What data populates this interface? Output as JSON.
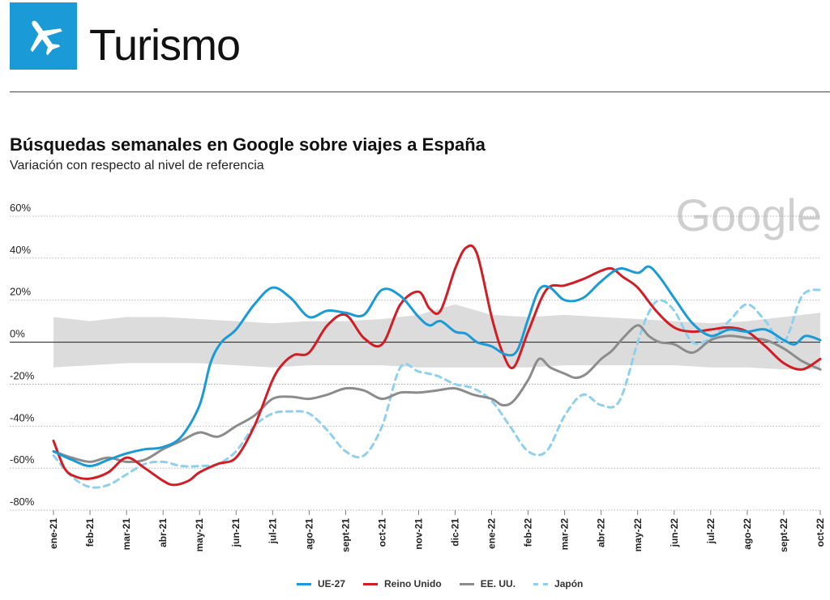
{
  "header": {
    "section_title": "Turismo",
    "icon": "airplane-icon",
    "accent_color": "#1a9ad6"
  },
  "watermark": "Google",
  "chart_data": {
    "type": "line",
    "title": "Búsquedas semanales en Google sobre viajes a España",
    "subtitle": "Variación con respecto al nivel de referencia",
    "y_unit": "%",
    "ylim": [
      -80,
      60
    ],
    "yticks": [
      60,
      40,
      20,
      0,
      -20,
      -40,
      -60,
      -80
    ],
    "ytick_labels": [
      "60%",
      "40%",
      "20%",
      "0%",
      "-20%",
      "-40%",
      "-60%",
      "-80%"
    ],
    "categories": [
      "ene-21",
      "feb-21",
      "mar-21",
      "abr-21",
      "may-21",
      "jun-21",
      "jul-21",
      "ago-21",
      "sept-21",
      "oct-21",
      "nov-21",
      "dic-21",
      "ene-22",
      "feb-22",
      "mar-22",
      "abr-22",
      "may-22",
      "jun-22",
      "jul-22",
      "ago-22",
      "sept-22",
      "oct-22"
    ],
    "x_range": [
      0,
      21
    ],
    "grid": "horizontal dotted",
    "legend_position": "bottom-center",
    "reference_band": {
      "x": [
        0,
        1,
        2,
        3,
        4,
        5,
        6,
        7,
        8,
        9,
        10,
        11,
        12,
        13,
        14,
        15,
        16,
        17,
        18,
        19,
        20,
        21
      ],
      "upper": [
        12,
        10,
        12,
        12,
        11,
        10,
        9,
        10,
        10,
        11,
        13,
        18,
        13,
        12,
        13,
        12,
        11,
        10,
        9,
        10,
        12,
        14
      ],
      "lower": [
        -12,
        -11,
        -10,
        -10,
        -10,
        -11,
        -12,
        -11,
        -11,
        -11,
        -12,
        -12,
        -12,
        -12,
        -11,
        -11,
        -11,
        -11,
        -12,
        -12,
        -13,
        -13
      ],
      "color": "#dcdcdc"
    },
    "series": [
      {
        "name": "UE-27",
        "color": "#1a9ad6",
        "dashed": false,
        "x": [
          0,
          0.5,
          1,
          1.5,
          2,
          2.5,
          3,
          3.5,
          4,
          4.3,
          4.6,
          5,
          5.5,
          6,
          6.5,
          7,
          7.5,
          8,
          8.5,
          9,
          9.5,
          10,
          10.3,
          10.6,
          11,
          11.3,
          11.6,
          12,
          12.4,
          12.7,
          13,
          13.3,
          13.6,
          14,
          14.5,
          15,
          15.5,
          16,
          16.3,
          16.6,
          17,
          17.5,
          18,
          18.5,
          19,
          19.5,
          20,
          20.3,
          20.6,
          21
        ],
        "y": [
          -52,
          -56,
          -59,
          -56,
          -53,
          -51,
          -50,
          -45,
          -30,
          -10,
          0,
          6,
          18,
          26,
          21,
          12,
          15,
          14,
          13,
          25,
          22,
          12,
          8,
          10,
          5,
          4,
          0,
          -2,
          -6,
          -4,
          11,
          25,
          26,
          20,
          21,
          29,
          35,
          33,
          36,
          31,
          21,
          9,
          3,
          6,
          5,
          6,
          1,
          -1,
          3,
          1
        ]
      },
      {
        "name": "Reino Unido",
        "color": "#d21d24",
        "dashed": false,
        "x": [
          0,
          0.3,
          0.6,
          1,
          1.5,
          2,
          2.5,
          3,
          3.3,
          3.7,
          4,
          4.5,
          5,
          5.5,
          6,
          6.3,
          6.6,
          7,
          7.5,
          8,
          8.5,
          9,
          9.5,
          10,
          10.3,
          10.6,
          11,
          11.3,
          11.6,
          12,
          12.3,
          12.6,
          13,
          13.5,
          14,
          14.5,
          15,
          15.3,
          15.6,
          16,
          16.5,
          17,
          17.5,
          18,
          18.5,
          19,
          19.5,
          20,
          20.5,
          21
        ],
        "y": [
          -47,
          -60,
          -64,
          -65,
          -62,
          -55,
          -60,
          -66,
          -68,
          -66,
          -62,
          -58,
          -55,
          -40,
          -18,
          -10,
          -6,
          -5,
          8,
          13,
          2,
          -1,
          18,
          24,
          16,
          15,
          35,
          45,
          42,
          12,
          -5,
          -12,
          5,
          25,
          27,
          30,
          34,
          35,
          31,
          26,
          15,
          7,
          5,
          6,
          7,
          5,
          -2,
          -10,
          -13,
          -8
        ]
      },
      {
        "name": "EE. UU.",
        "color": "#8c8c8c",
        "dashed": false,
        "x": [
          0,
          0.5,
          1,
          1.5,
          2,
          2.5,
          3,
          3.5,
          4,
          4.5,
          5,
          5.5,
          6,
          6.5,
          7,
          7.5,
          8,
          8.5,
          9,
          9.5,
          10,
          10.5,
          11,
          11.5,
          12,
          12.3,
          12.6,
          13,
          13.3,
          13.6,
          14,
          14.3,
          14.6,
          15,
          15.3,
          15.6,
          16,
          16.3,
          16.6,
          17,
          17.5,
          18,
          18.5,
          19,
          19.5,
          20,
          20.5,
          21
        ],
        "y": [
          -52,
          -55,
          -57,
          -55,
          -57,
          -56,
          -51,
          -47,
          -43,
          -45,
          -40,
          -35,
          -27,
          -26,
          -27,
          -25,
          -22,
          -23,
          -27,
          -24,
          -24,
          -23,
          -22,
          -25,
          -27,
          -30,
          -28,
          -18,
          -8,
          -12,
          -15,
          -17,
          -15,
          -8,
          -4,
          2,
          8,
          3,
          0,
          -1,
          -5,
          1,
          3,
          2,
          1,
          -3,
          -9,
          -13
        ]
      },
      {
        "name": "Japón",
        "color": "#8fd0ee",
        "dashed": true,
        "x": [
          0,
          0.5,
          1,
          1.5,
          2,
          2.5,
          3,
          3.5,
          4,
          4.5,
          5,
          5.5,
          6,
          6.5,
          7,
          7.5,
          8,
          8.5,
          9,
          9.5,
          10,
          10.5,
          11,
          11.5,
          12,
          12.5,
          13,
          13.5,
          14,
          14.5,
          15,
          15.5,
          16,
          16.3,
          16.6,
          17,
          17.5,
          18,
          18.5,
          19,
          19.5,
          20,
          20.5,
          21
        ],
        "y": [
          -54,
          -64,
          -69,
          -68,
          -63,
          -58,
          -57,
          -59,
          -59,
          -58,
          -52,
          -40,
          -34,
          -33,
          -34,
          -42,
          -52,
          -54,
          -40,
          -12,
          -14,
          -16,
          -20,
          -22,
          -28,
          -40,
          -52,
          -52,
          -35,
          -25,
          -30,
          -28,
          0,
          14,
          20,
          15,
          0,
          2,
          10,
          18,
          10,
          0,
          22,
          25
        ]
      }
    ]
  }
}
